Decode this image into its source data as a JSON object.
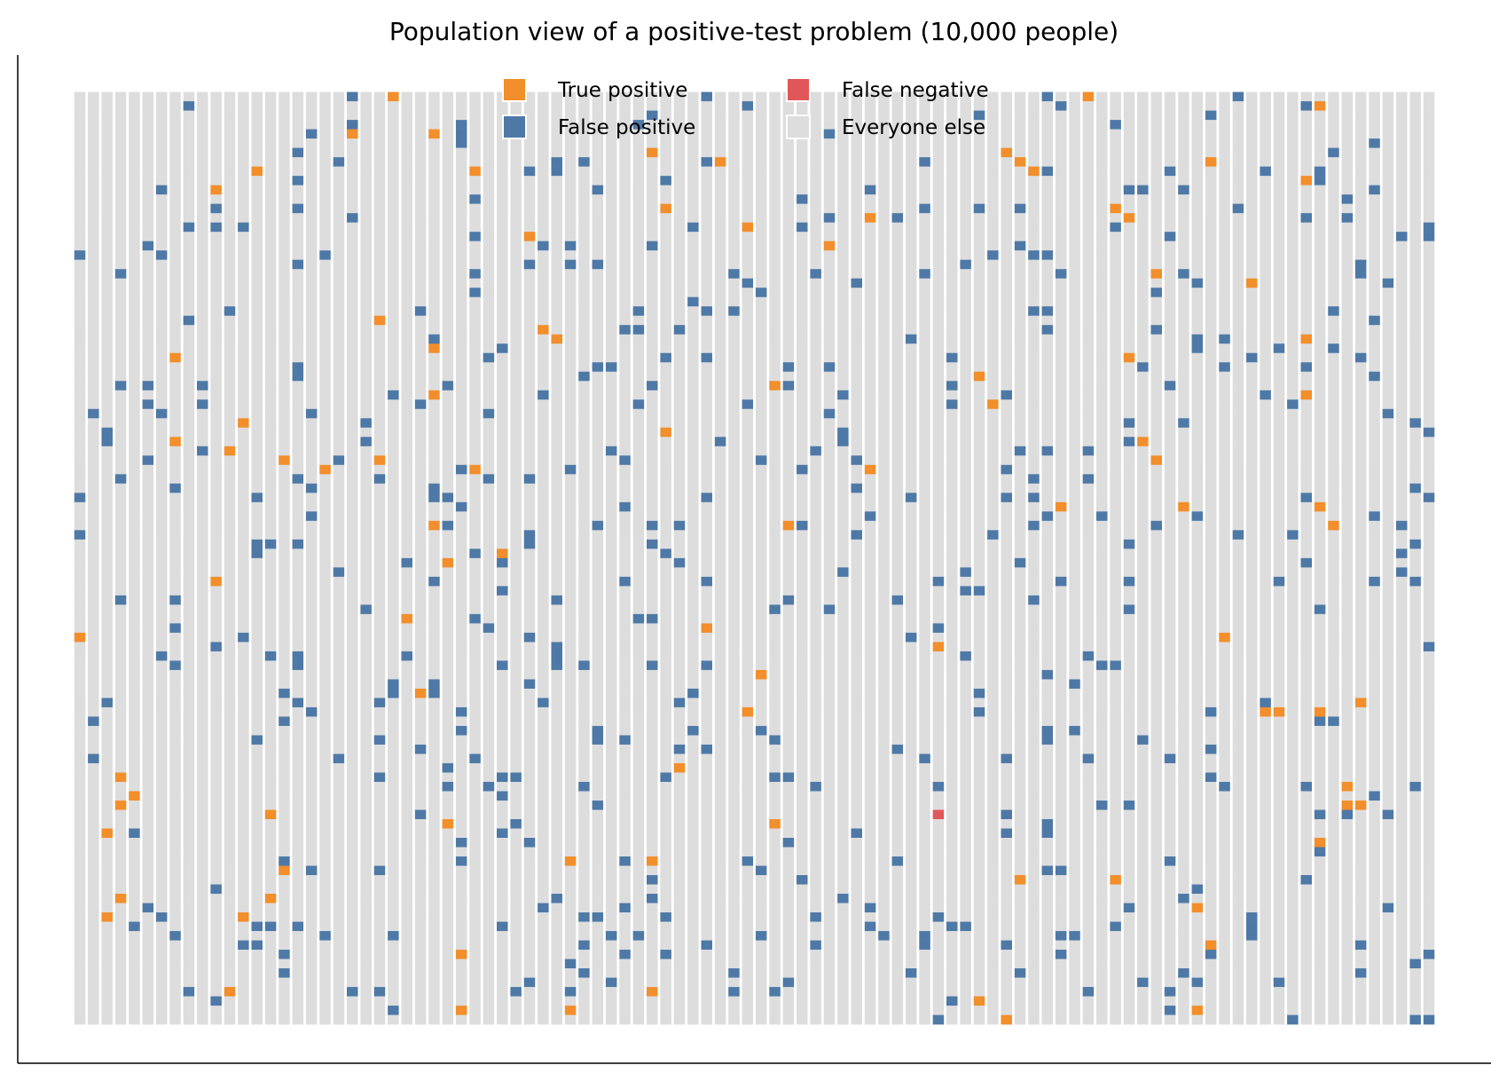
{
  "chart_data": {
    "type": "scatter",
    "title": "Population view of a positive-test problem (10,000 people)",
    "xlabel": "",
    "ylabel": "",
    "grid": false,
    "legend_placement": "top-center",
    "grid_columns": 100,
    "grid_rows": 100,
    "population": 10000,
    "categories": [
      {
        "name": "True positive",
        "count": 99,
        "color": "#f28e2b"
      },
      {
        "name": "False negative",
        "count": 1,
        "color": "#e15759"
      },
      {
        "name": "False positive",
        "count": 495,
        "color": "#4e79a7"
      },
      {
        "name": "Everyone else",
        "count": 9405,
        "color": "#dddddd"
      }
    ]
  }
}
